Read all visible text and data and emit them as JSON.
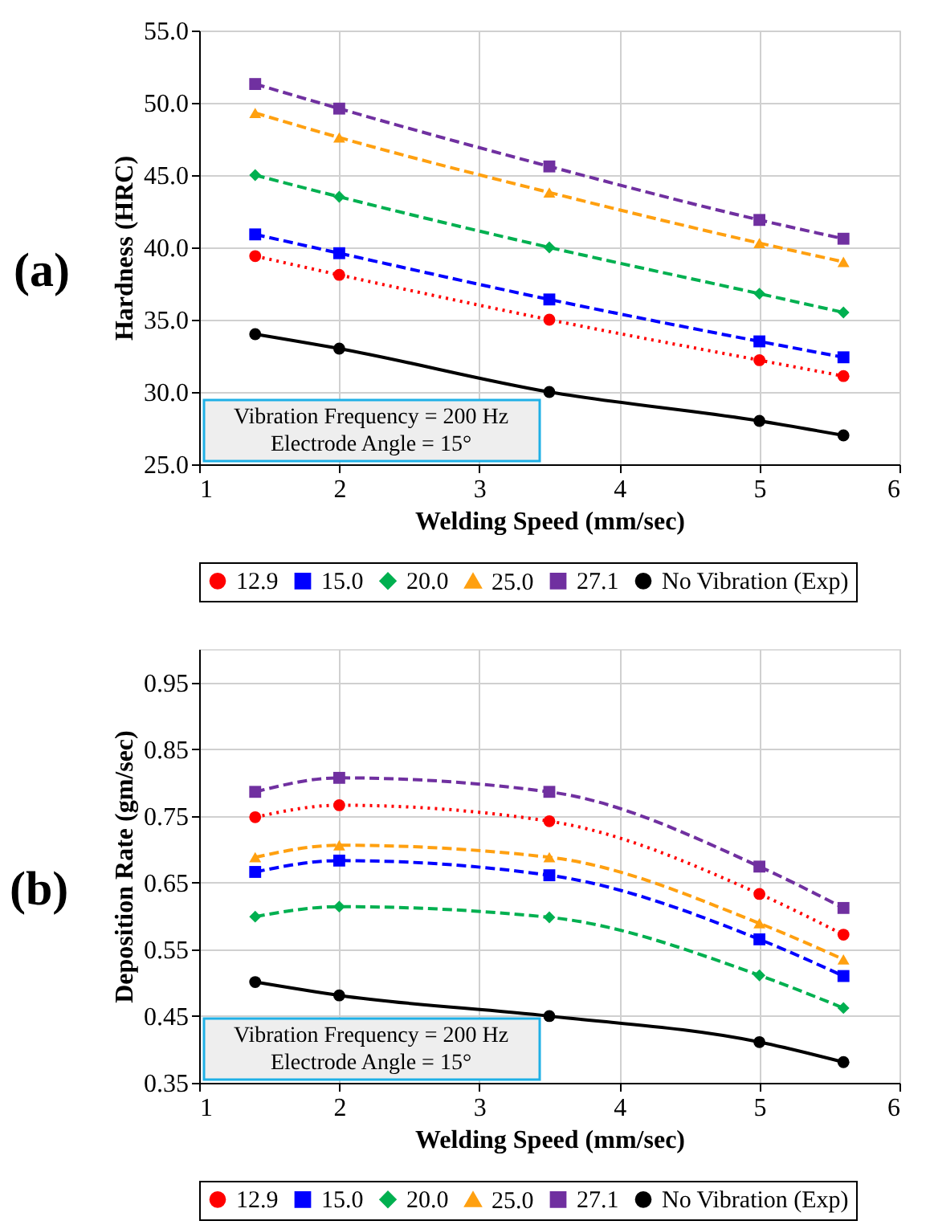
{
  "chart_data": [
    {
      "type": "line",
      "title": "(a)",
      "xlabel": "Welding Speed (mm/sec)",
      "ylabel": "Hardness (HRC)",
      "x": [
        1.4,
        2,
        3.5,
        5,
        5.6
      ],
      "xlim": [
        1,
        6
      ],
      "xticks": [
        1,
        2,
        3,
        4,
        5,
        6
      ],
      "ylim": [
        25,
        55
      ],
      "yticks": [
        {
          "value": 25,
          "label": "25.0"
        },
        {
          "value": 30,
          "label": "30.0"
        },
        {
          "value": 35,
          "label": "35.0"
        },
        {
          "value": 40,
          "label": "40.0"
        },
        {
          "value": 45,
          "label": "45.0"
        },
        {
          "value": 50,
          "label": "50.0"
        },
        {
          "value": 55,
          "label": "55.0"
        }
      ],
      "grid": true,
      "legend": "bottom",
      "annotations": [
        "Vibration Frequency = 200 Hz",
        "Electrode Angle = 15°"
      ],
      "series": [
        {
          "name": "12.9",
          "color": "#ff0000",
          "marker": "circle",
          "line_style": "dotted",
          "values": [
            39.4,
            38.1,
            35.0,
            32.2,
            31.1
          ]
        },
        {
          "name": "15.0",
          "color": "#0000ff",
          "marker": "square",
          "line_style": "dashed",
          "values": [
            40.9,
            39.6,
            36.4,
            33.5,
            32.4
          ]
        },
        {
          "name": "20.0",
          "color": "#00b050",
          "marker": "diamond",
          "line_style": "dashed",
          "values": [
            45.0,
            43.5,
            40.0,
            36.8,
            35.5
          ]
        },
        {
          "name": "25.0",
          "color": "#ffa010",
          "marker": "triangle",
          "line_style": "dashed",
          "values": [
            49.3,
            47.6,
            43.8,
            40.3,
            39.0
          ]
        },
        {
          "name": "27.1",
          "color": "#7030a0",
          "marker": "square",
          "line_style": "dashed",
          "values": [
            51.3,
            49.6,
            45.6,
            41.9,
            40.6
          ]
        },
        {
          "name": "No Vibration (Exp)",
          "color": "#000000",
          "marker": "circle",
          "line_style": "solid",
          "values": [
            34,
            33,
            30,
            28,
            27
          ]
        }
      ]
    },
    {
      "type": "line",
      "title": "(b)",
      "xlabel": "Welding Speed (mm/sec)",
      "ylabel": "Deposition Rate (gm/sec)",
      "x": [
        1.4,
        2,
        3.5,
        5,
        5.6
      ],
      "xlim": [
        1,
        6
      ],
      "xticks": [
        1,
        2,
        3,
        4,
        5,
        6
      ],
      "ylim": [
        0.35,
        1.0
      ],
      "yticks": [
        0.35,
        0.45,
        0.55,
        0.65,
        0.75,
        0.85,
        0.95
      ],
      "grid": true,
      "legend": "bottom",
      "annotations": [
        "Vibration Frequency = 200 Hz",
        "Electrode Angle = 15°"
      ],
      "series": [
        {
          "name": "12.9",
          "color": "#ff0000",
          "marker": "circle",
          "line_style": "dotted",
          "values": [
            0.748,
            0.766,
            0.742,
            0.633,
            0.572
          ]
        },
        {
          "name": "15.0",
          "color": "#0000ff",
          "marker": "square",
          "line_style": "dashed",
          "values": [
            0.666,
            0.683,
            0.661,
            0.565,
            0.51
          ]
        },
        {
          "name": "20.0",
          "color": "#00b050",
          "marker": "diamond",
          "line_style": "dashed",
          "values": [
            0.599,
            0.614,
            0.598,
            0.511,
            0.462
          ]
        },
        {
          "name": "25.0",
          "color": "#ffa010",
          "marker": "triangle",
          "line_style": "dashed",
          "values": [
            0.688,
            0.706,
            0.688,
            0.589,
            0.535
          ]
        },
        {
          "name": "27.1",
          "color": "#7030a0",
          "marker": "square",
          "line_style": "dashed",
          "values": [
            0.786,
            0.807,
            0.786,
            0.674,
            0.612
          ]
        },
        {
          "name": "No Vibration (Exp)",
          "color": "#000000",
          "marker": "circle",
          "line_style": "solid",
          "values": [
            0.501,
            0.481,
            0.45,
            0.411,
            0.381
          ]
        }
      ]
    }
  ]
}
